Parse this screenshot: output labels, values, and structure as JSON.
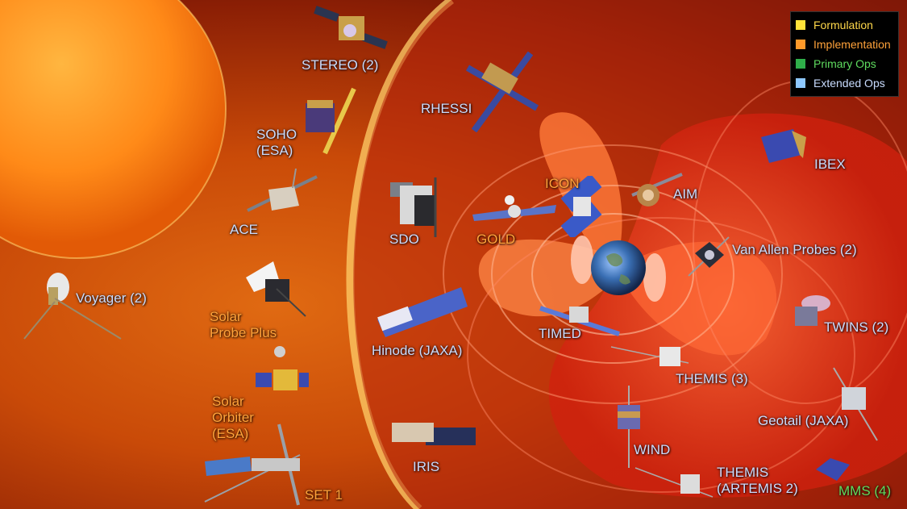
{
  "legend": {
    "items": [
      {
        "label": "Formulation",
        "color": "#ffe33a"
      },
      {
        "label": "Implementation",
        "color": "#ff9a2a"
      },
      {
        "label": "Primary Ops",
        "color": "#2fae4a"
      },
      {
        "label": "Extended Ops",
        "color": "#8ec8ff"
      }
    ]
  },
  "missions": {
    "stereo": "STEREO (2)",
    "rhessi": "RHESSI",
    "soho_line1": "SOHO",
    "soho_line2": "(ESA)",
    "ace": "ACE",
    "sdo": "SDO",
    "gold": "GOLD",
    "icon": "ICON",
    "aim": "AIM",
    "ibex": "IBEX",
    "van_allen": "Van Allen Probes (2)",
    "voyager": "Voyager (2)",
    "spp_line1": "Solar",
    "spp_line2": "Probe Plus",
    "hinode": "Hinode (JAXA)",
    "timed": "TIMED",
    "twins": "TWINS (2)",
    "themis": "THEMIS (3)",
    "solo_line1": "Solar",
    "solo_line2": "Orbiter",
    "solo_line3": "(ESA)",
    "geotail": "Geotail (JAXA)",
    "wind": "WIND",
    "iris": "IRIS",
    "artemis_line1": "THEMIS",
    "artemis_line2": "(ARTEMIS 2)",
    "mms": "MMS (4)",
    "set1": "SET 1"
  }
}
